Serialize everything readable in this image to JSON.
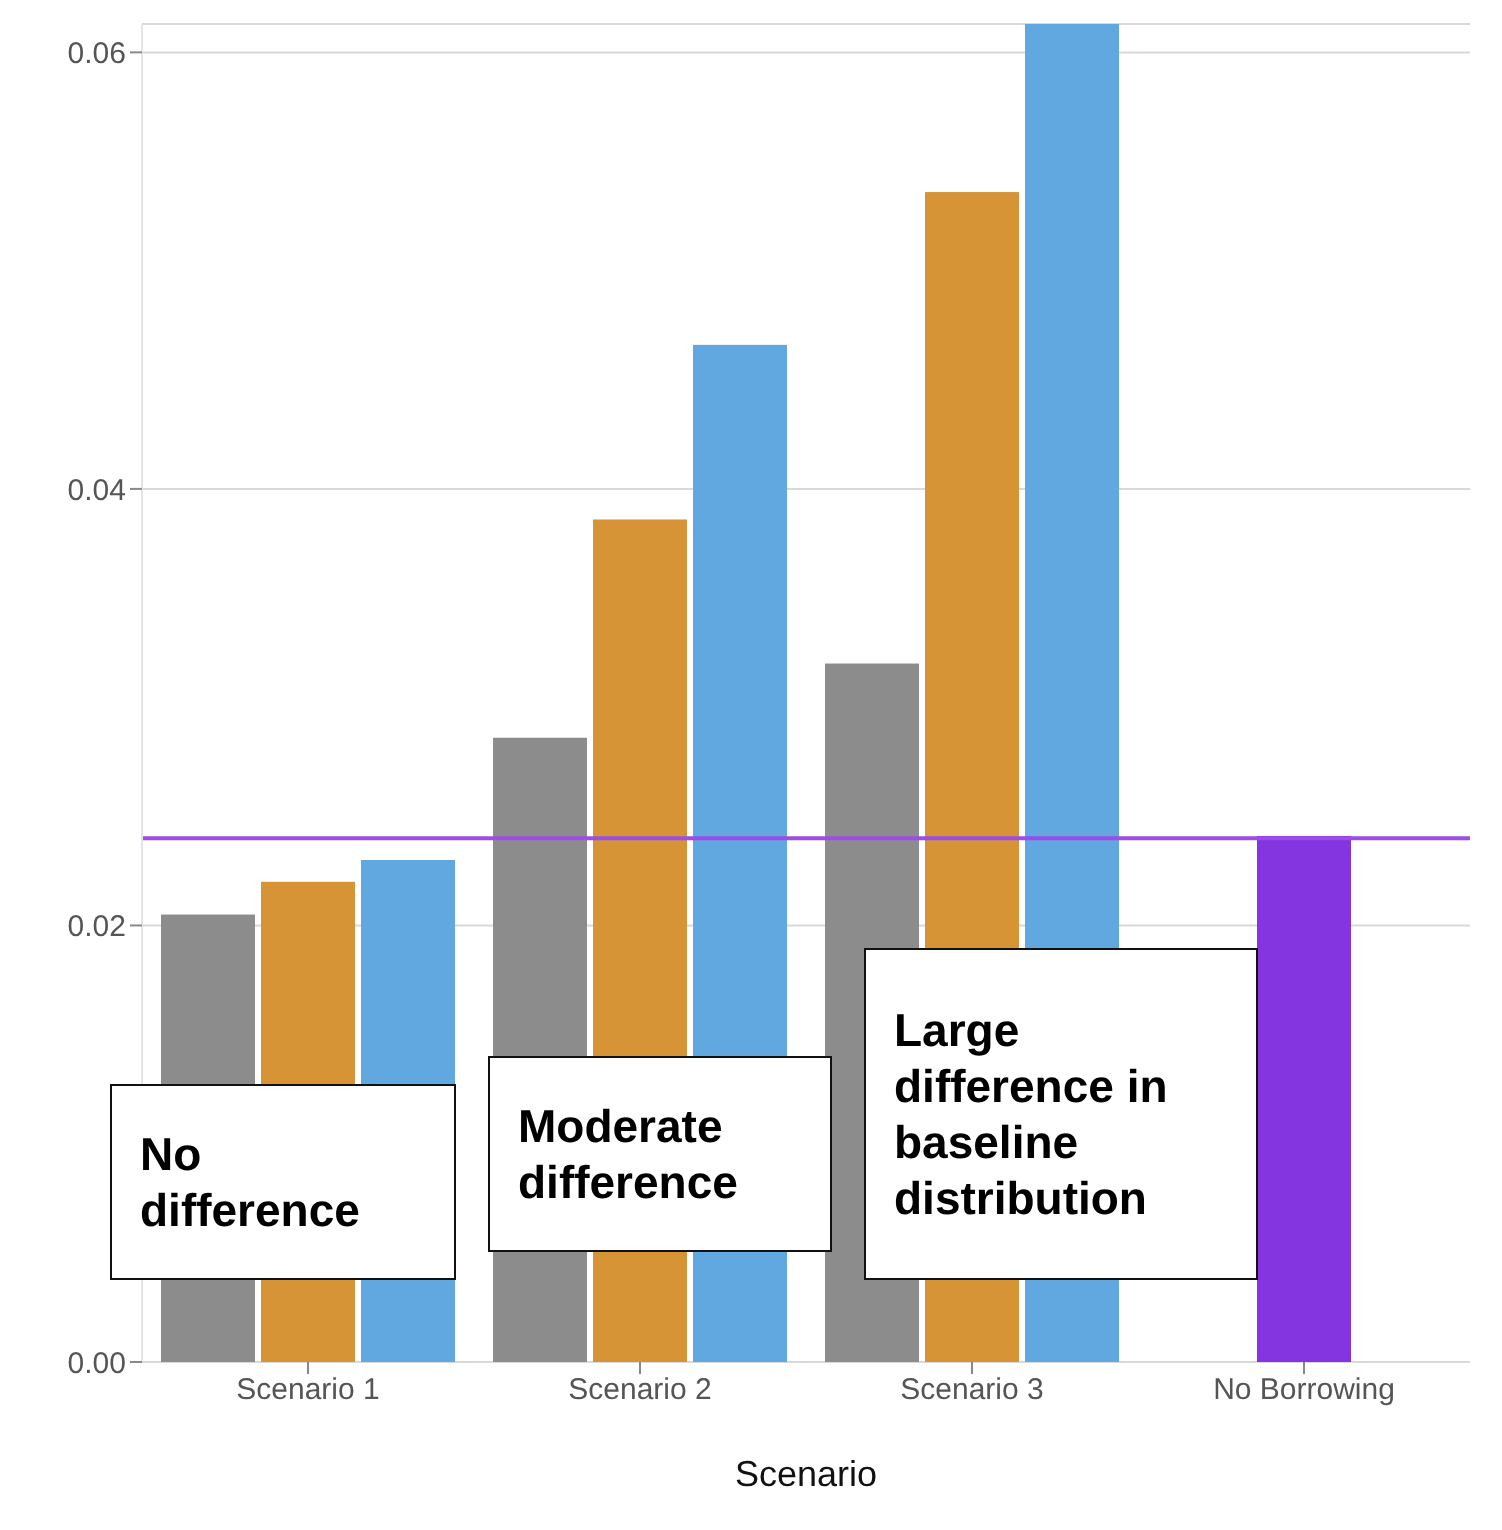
{
  "chart_data": {
    "type": "bar",
    "xlabel": "Scenario",
    "categories": [
      "Scenario 1",
      "Scenario 2",
      "Scenario 3",
      "No Borrowing"
    ],
    "series": [
      {
        "color": "#8c8c8c",
        "values": [
          0.0205,
          0.0286,
          0.032,
          null
        ]
      },
      {
        "color": "#d69436",
        "values": [
          0.022,
          0.0386,
          0.0536,
          null
        ]
      },
      {
        "color": "#62a8e0",
        "values": [
          0.023,
          0.0466,
          0.0613,
          null
        ]
      },
      {
        "color": "#8435e0",
        "values": [
          null,
          null,
          null,
          0.0241
        ]
      }
    ],
    "ylim": [
      0,
      0.0613
    ],
    "yticks": [
      {
        "value": 0,
        "label": "0.00"
      },
      {
        "value": 0.02,
        "label": "0.02"
      },
      {
        "value": 0.04,
        "label": "0.04"
      },
      {
        "value": 0.06,
        "label": "0.06"
      }
    ],
    "grid": "y",
    "ref_lines": [
      {
        "axis": "y",
        "value": 0.024,
        "color": "#9b4dea"
      }
    ],
    "annotations": [
      "No difference",
      "Moderate difference",
      "Large difference in baseline distribution"
    ]
  }
}
